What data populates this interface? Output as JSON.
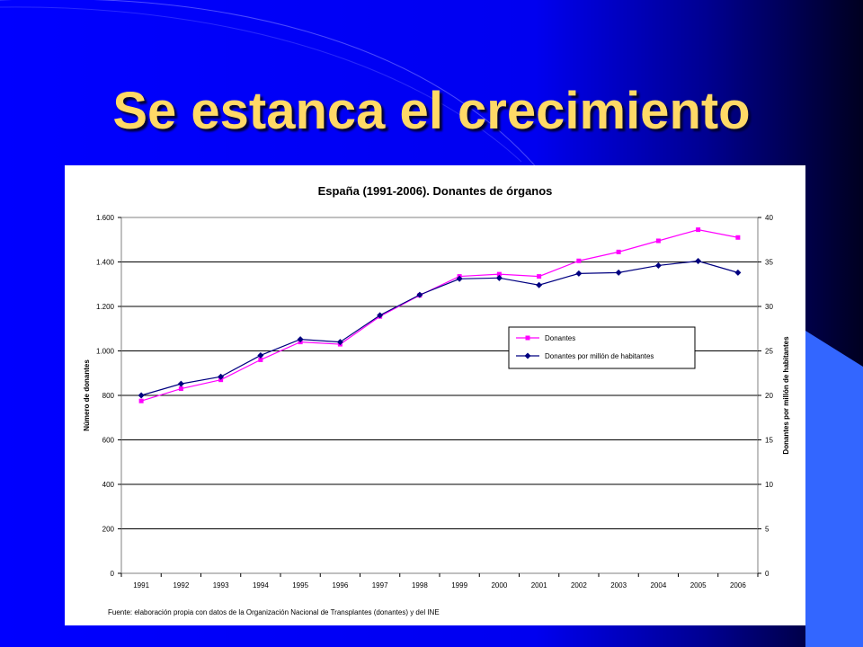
{
  "slide": {
    "title": "Se estanca el crecimiento",
    "background_color": "#0000ff",
    "accent_color": "#3366ff",
    "title_color": "#ffd966"
  },
  "chart_data": {
    "type": "line",
    "title": "España (1991-2006). Donantes de órganos",
    "categories": [
      "1991",
      "1992",
      "1993",
      "1994",
      "1995",
      "1996",
      "1997",
      "1998",
      "1999",
      "2000",
      "2001",
      "2002",
      "2003",
      "2004",
      "2005",
      "2006"
    ],
    "y_left": {
      "label": "Número de donantes",
      "range": [
        0,
        1600
      ],
      "tick_values": [
        0,
        200,
        400,
        600,
        800,
        1000,
        1200,
        1400,
        1600
      ],
      "tick_labels": [
        "0",
        "200",
        "400",
        "600",
        "800",
        "1.000",
        "1.200",
        "1.400",
        "1.600"
      ]
    },
    "y_right": {
      "label": "Donantes por millón de habitantes",
      "range": [
        0,
        40
      ],
      "tick_values": [
        0,
        5,
        10,
        15,
        20,
        25,
        30,
        35,
        40
      ],
      "tick_labels": [
        "0",
        "5",
        "10",
        "15",
        "20",
        "25",
        "30",
        "35",
        "40"
      ]
    },
    "series": [
      {
        "name": "Donantes",
        "axis": "left",
        "color": "#ff00ff",
        "marker": "square",
        "values": [
          775,
          830,
          870,
          960,
          1040,
          1030,
          1155,
          1250,
          1335,
          1345,
          1335,
          1405,
          1445,
          1495,
          1545,
          1510
        ]
      },
      {
        "name": "Donantes por millón de habitantes",
        "axis": "right",
        "color": "#000080",
        "marker": "diamond",
        "values": [
          20.0,
          21.3,
          22.1,
          24.5,
          26.3,
          26.0,
          29.0,
          31.3,
          33.1,
          33.2,
          32.4,
          33.7,
          33.8,
          34.6,
          35.1,
          33.8
        ]
      }
    ],
    "grid": true,
    "legend_position": "center-right",
    "source_note": "Fuente: elaboración propia con datos de la Organización Nacional de Transplantes (donantes) y del INE"
  }
}
